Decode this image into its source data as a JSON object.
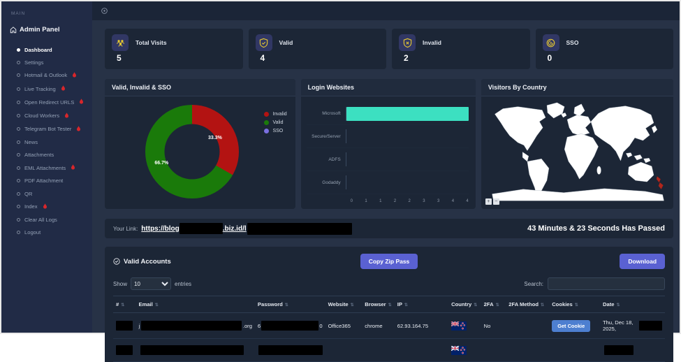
{
  "sidebar": {
    "section_label": "MAIN",
    "brand": "Admin Panel",
    "items": [
      {
        "label": "Dashboard",
        "active": true,
        "fire": false
      },
      {
        "label": "Settings",
        "active": false,
        "fire": false
      },
      {
        "label": "Hotmail & Outlook",
        "active": false,
        "fire": true
      },
      {
        "label": "Live Tracking",
        "active": false,
        "fire": true
      },
      {
        "label": "Open Redirect URLS",
        "active": false,
        "fire": true
      },
      {
        "label": "Cloud Workers",
        "active": false,
        "fire": true
      },
      {
        "label": "Telegram Bot Tester",
        "active": false,
        "fire": true
      },
      {
        "label": "News",
        "active": false,
        "fire": false
      },
      {
        "label": "Attachments",
        "active": false,
        "fire": false
      },
      {
        "label": "EML Attachments",
        "active": false,
        "fire": true
      },
      {
        "label": "PDF Attachment",
        "active": false,
        "fire": false
      },
      {
        "label": "QR",
        "active": false,
        "fire": false
      },
      {
        "label": "Index",
        "active": false,
        "fire": true
      },
      {
        "label": "Clear All Logs",
        "active": false,
        "fire": false
      },
      {
        "label": "Logout",
        "active": false,
        "fire": false
      }
    ]
  },
  "stats": [
    {
      "label": "Total Visits",
      "value": "5",
      "icon": "users-icon"
    },
    {
      "label": "Valid",
      "value": "4",
      "icon": "shield-check-icon"
    },
    {
      "label": "Invalid",
      "value": "2",
      "icon": "shield-x-icon"
    },
    {
      "label": "SSO",
      "value": "0",
      "icon": "sso-swirl-icon"
    }
  ],
  "chart_data": [
    {
      "type": "pie",
      "title": "Valid, Invalid & SSO",
      "labels": [
        "Invalid",
        "Valid",
        "SSO"
      ],
      "values": [
        33.3,
        66.7,
        0
      ],
      "display_labels": [
        "33.3%",
        "66.7%"
      ],
      "colors": [
        "#b31312",
        "#1a7a0a",
        "#7a6fe0"
      ],
      "donut": true,
      "legend_position": "right"
    },
    {
      "type": "bar",
      "title": "Login Websites",
      "orientation": "horizontal",
      "categories": [
        "Microsoft",
        "Secure/Server",
        "ADFS",
        "Godaddy"
      ],
      "values": [
        4,
        0,
        0,
        0
      ],
      "xlim": [
        0,
        4
      ],
      "x_ticks": [
        "0",
        "1",
        "1",
        "2",
        "2",
        "3",
        "3",
        "4",
        "4"
      ],
      "bar_color": "#3ce0c1",
      "grid": true
    },
    {
      "type": "map",
      "title": "Visitors By Country",
      "highlighted": [
        {
          "country": "New Zealand",
          "color": "#b0271d",
          "value": "visits"
        }
      ]
    }
  ],
  "link_bar": {
    "label": "Your Link:",
    "url_prefix": "https://blog",
    "url_mid": ".biz.id/l",
    "timer": "43 Minutes & 23 Seconds Has Passed"
  },
  "accounts": {
    "title": "Valid Accounts",
    "copy_button": "Copy Zip Pass",
    "download_button": "Download",
    "show_label": "Show",
    "page_size": "10",
    "entries_label": "entries",
    "search_label": "Search:",
    "table": {
      "headers": [
        "#",
        "Email",
        "Password",
        "Website",
        "Browser",
        "IP",
        "Country",
        "2FA",
        "2FA Method",
        "Cookies",
        "Date"
      ],
      "rows": [
        {
          "email_prefix": "j",
          "email_suffix": ".org",
          "password_prefix": "6",
          "password_suffix": "0",
          "website": "Office365",
          "browser": "chrome",
          "ip": "62.93.164.75",
          "country": "New Zealand",
          "twofa": "No",
          "twofa_method": "",
          "cookies_button": "Get Cookie",
          "date_prefix": "Thu, Dec 18, 2025,"
        }
      ]
    }
  },
  "colors": {
    "accent_indigo": "#5a61d2",
    "accent_blue": "#4d7fd0",
    "bar_teal": "#3ce0c1",
    "invalid_red": "#b31312",
    "valid_green": "#1a7a0a",
    "sso_purple": "#7a6fe0",
    "icon_yellow": "#e6c832"
  }
}
